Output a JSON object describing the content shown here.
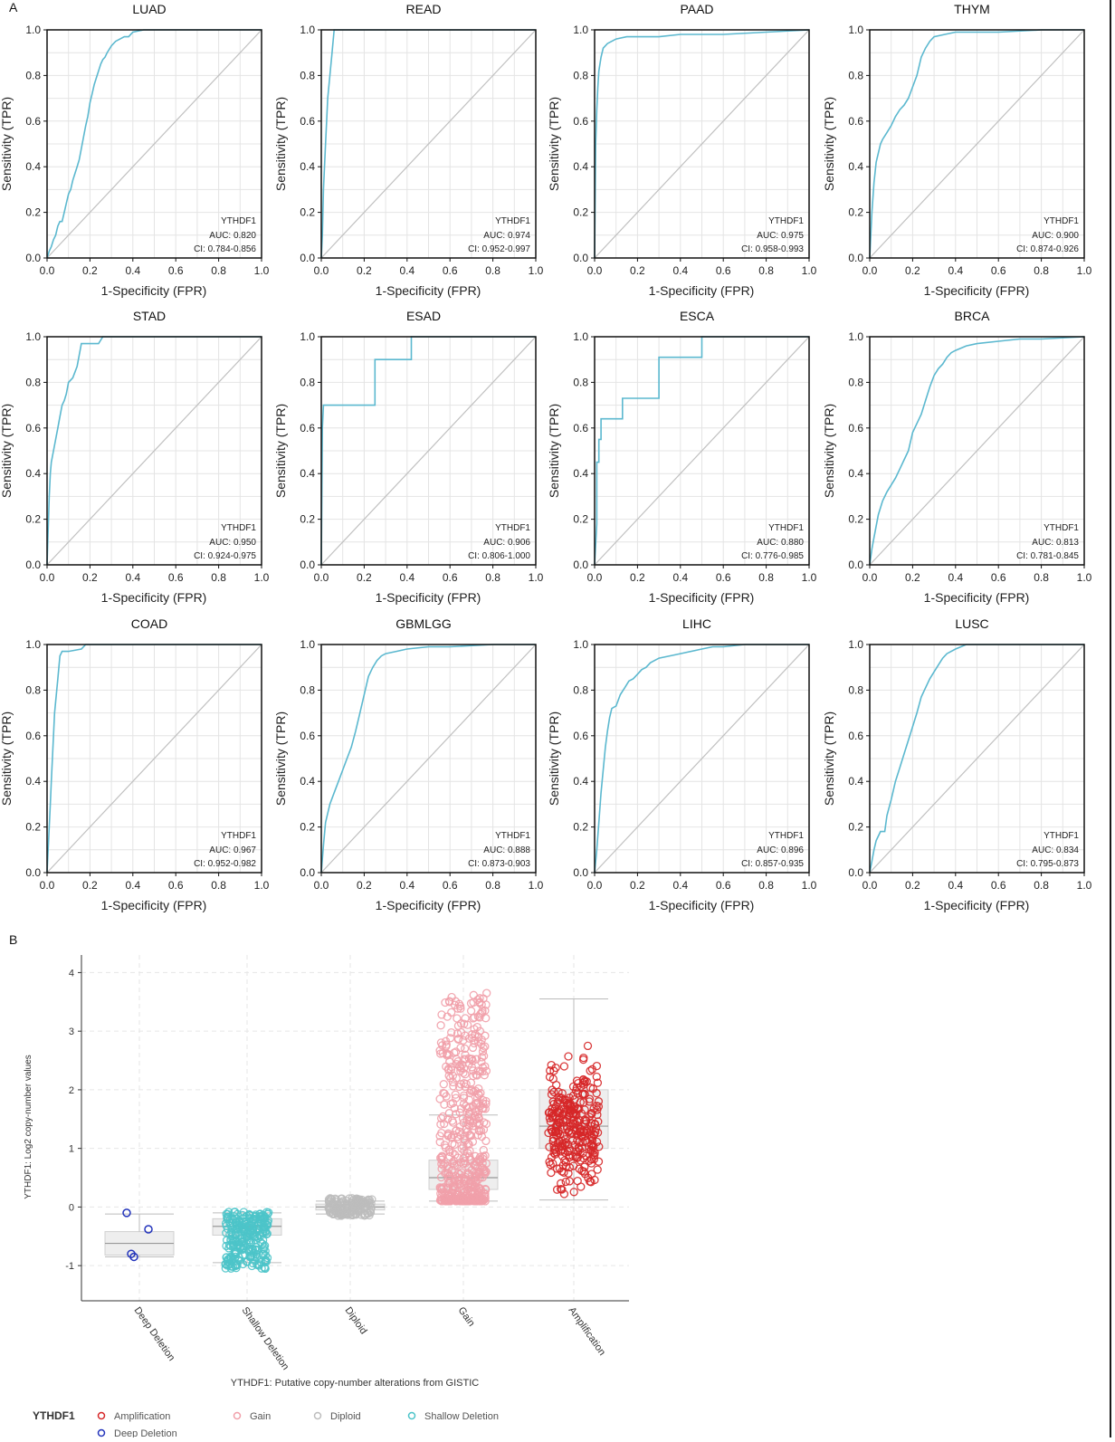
{
  "figure": {
    "panel_a_label": "A",
    "panel_b_label": "B"
  },
  "roc": {
    "xlabel": "1-Specificity (FPR)",
    "ylabel": "Sensitivity (TPR)",
    "ticks": [
      "0.0",
      "0.2",
      "0.4",
      "0.6",
      "0.8",
      "1.0"
    ],
    "gene_label": "YTHDF1",
    "line_color": "#5bb8cf",
    "diag_color": "#c0c0c0"
  },
  "chart_data": [
    {
      "type": "line",
      "title": "LUAD",
      "auc": "AUC: 0.820",
      "ci": "CI: 0.784-0.856",
      "xlim": [
        0,
        1
      ],
      "ylim": [
        0,
        1
      ],
      "series": [
        {
          "x": [
            0,
            0.01,
            0.02,
            0.03,
            0.04,
            0.05,
            0.06,
            0.07,
            0.08,
            0.09,
            0.1,
            0.11,
            0.12,
            0.13,
            0.14,
            0.15,
            0.16,
            0.17,
            0.18,
            0.19,
            0.2,
            0.21,
            0.22,
            0.23,
            0.24,
            0.25,
            0.26,
            0.27,
            0.28,
            0.3,
            0.32,
            0.34,
            0.36,
            0.38,
            0.4,
            0.45,
            1
          ],
          "y": [
            0,
            0.03,
            0.05,
            0.08,
            0.1,
            0.14,
            0.16,
            0.16,
            0.2,
            0.24,
            0.28,
            0.3,
            0.34,
            0.37,
            0.4,
            0.43,
            0.48,
            0.53,
            0.58,
            0.62,
            0.68,
            0.72,
            0.76,
            0.79,
            0.82,
            0.85,
            0.87,
            0.88,
            0.9,
            0.93,
            0.95,
            0.96,
            0.97,
            0.97,
            0.99,
            1.0,
            1.0
          ]
        }
      ]
    },
    {
      "type": "line",
      "title": "READ",
      "auc": "AUC: 0.974",
      "ci": "CI: 0.952-0.997",
      "xlim": [
        0,
        1
      ],
      "ylim": [
        0,
        1
      ],
      "series": [
        {
          "x": [
            0,
            0.005,
            0.01,
            0.02,
            0.03,
            0.04,
            0.05,
            0.06,
            1
          ],
          "y": [
            0,
            0.1,
            0.3,
            0.5,
            0.7,
            0.8,
            0.9,
            1.0,
            1.0
          ]
        }
      ]
    },
    {
      "type": "line",
      "title": "PAAD",
      "auc": "AUC: 0.975",
      "ci": "CI: 0.958-0.993",
      "xlim": [
        0,
        1
      ],
      "ylim": [
        0,
        1
      ],
      "series": [
        {
          "x": [
            0,
            0.005,
            0.01,
            0.015,
            0.02,
            0.03,
            0.04,
            0.06,
            0.08,
            0.1,
            0.15,
            0.2,
            0.3,
            0.4,
            0.6,
            0.8,
            1
          ],
          "y": [
            0,
            0.5,
            0.65,
            0.75,
            0.82,
            0.88,
            0.92,
            0.94,
            0.95,
            0.96,
            0.97,
            0.97,
            0.97,
            0.98,
            0.98,
            0.99,
            1.0
          ]
        }
      ]
    },
    {
      "type": "line",
      "title": "THYM",
      "auc": "AUC: 0.900",
      "ci": "CI: 0.874-0.926",
      "xlim": [
        0,
        1
      ],
      "ylim": [
        0,
        1
      ],
      "series": [
        {
          "x": [
            0,
            0.01,
            0.02,
            0.03,
            0.04,
            0.05,
            0.06,
            0.08,
            0.1,
            0.12,
            0.14,
            0.16,
            0.18,
            0.2,
            0.22,
            0.24,
            0.26,
            0.28,
            0.3,
            0.35,
            0.4,
            0.6,
            0.8,
            1
          ],
          "y": [
            0,
            0.2,
            0.33,
            0.42,
            0.46,
            0.5,
            0.52,
            0.55,
            0.58,
            0.62,
            0.65,
            0.67,
            0.7,
            0.75,
            0.8,
            0.88,
            0.92,
            0.95,
            0.97,
            0.98,
            0.99,
            0.99,
            1.0,
            1.0
          ]
        }
      ]
    },
    {
      "type": "line",
      "title": "STAD",
      "auc": "AUC: 0.950",
      "ci": "CI: 0.924-0.975",
      "xlim": [
        0,
        1
      ],
      "ylim": [
        0,
        1
      ],
      "series": [
        {
          "x": [
            0,
            0.005,
            0.01,
            0.015,
            0.02,
            0.03,
            0.04,
            0.05,
            0.06,
            0.07,
            0.08,
            0.09,
            0.1,
            0.12,
            0.14,
            0.16,
            0.2,
            0.24,
            0.26,
            1
          ],
          "y": [
            0,
            0.15,
            0.3,
            0.4,
            0.45,
            0.5,
            0.55,
            0.6,
            0.65,
            0.7,
            0.72,
            0.75,
            0.8,
            0.82,
            0.87,
            0.97,
            0.97,
            0.97,
            1.0,
            1.0
          ]
        }
      ]
    },
    {
      "type": "line",
      "title": "ESAD",
      "auc": "AUC: 0.906",
      "ci": "CI: 0.806-1.000",
      "xlim": [
        0,
        1
      ],
      "ylim": [
        0,
        1
      ],
      "series": [
        {
          "x": [
            0,
            0.005,
            0.01,
            0.25,
            0.25,
            0.42,
            0.42,
            1
          ],
          "y": [
            0,
            0.6,
            0.7,
            0.7,
            0.9,
            0.9,
            1.0,
            1.0
          ]
        }
      ]
    },
    {
      "type": "line",
      "title": "ESCA",
      "auc": "AUC: 0.880",
      "ci": "CI: 0.776-0.985",
      "xlim": [
        0,
        1
      ],
      "ylim": [
        0,
        1
      ],
      "series": [
        {
          "x": [
            0,
            0.01,
            0.01,
            0.02,
            0.02,
            0.03,
            0.03,
            0.13,
            0.13,
            0.3,
            0.3,
            0.5,
            0.5,
            1
          ],
          "y": [
            0,
            0.18,
            0.45,
            0.45,
            0.55,
            0.55,
            0.64,
            0.64,
            0.73,
            0.73,
            0.91,
            0.91,
            1.0,
            1.0
          ]
        }
      ]
    },
    {
      "type": "line",
      "title": "BRCA",
      "auc": "AUC: 0.813",
      "ci": "CI: 0.781-0.845",
      "xlim": [
        0,
        1
      ],
      "ylim": [
        0,
        1
      ],
      "series": [
        {
          "x": [
            0,
            0.01,
            0.02,
            0.03,
            0.04,
            0.06,
            0.08,
            0.1,
            0.12,
            0.14,
            0.16,
            0.18,
            0.2,
            0.22,
            0.24,
            0.26,
            0.28,
            0.3,
            0.32,
            0.34,
            0.36,
            0.38,
            0.4,
            0.45,
            0.5,
            0.6,
            0.7,
            0.8,
            1
          ],
          "y": [
            0,
            0.07,
            0.12,
            0.17,
            0.22,
            0.28,
            0.32,
            0.35,
            0.38,
            0.42,
            0.46,
            0.5,
            0.58,
            0.62,
            0.66,
            0.72,
            0.78,
            0.83,
            0.86,
            0.88,
            0.91,
            0.93,
            0.94,
            0.96,
            0.97,
            0.98,
            0.99,
            0.99,
            1.0
          ]
        }
      ]
    },
    {
      "type": "line",
      "title": "COAD",
      "auc": "AUC: 0.967",
      "ci": "CI: 0.952-0.982",
      "xlim": [
        0,
        1
      ],
      "ylim": [
        0,
        1
      ],
      "series": [
        {
          "x": [
            0,
            0.005,
            0.01,
            0.015,
            0.02,
            0.025,
            0.03,
            0.035,
            0.04,
            0.05,
            0.06,
            0.07,
            0.08,
            0.1,
            0.16,
            0.18,
            1
          ],
          "y": [
            0,
            0.1,
            0.2,
            0.3,
            0.4,
            0.5,
            0.6,
            0.7,
            0.75,
            0.85,
            0.95,
            0.97,
            0.97,
            0.97,
            0.98,
            1.0,
            1.0
          ]
        }
      ]
    },
    {
      "type": "line",
      "title": "GBMLGG",
      "auc": "AUC: 0.888",
      "ci": "CI: 0.873-0.903",
      "xlim": [
        0,
        1
      ],
      "ylim": [
        0,
        1
      ],
      "series": [
        {
          "x": [
            0,
            0.01,
            0.02,
            0.04,
            0.06,
            0.08,
            0.1,
            0.12,
            0.14,
            0.16,
            0.18,
            0.2,
            0.22,
            0.24,
            0.26,
            0.28,
            0.3,
            0.35,
            0.4,
            0.5,
            0.6,
            0.8,
            1
          ],
          "y": [
            0,
            0.12,
            0.22,
            0.3,
            0.35,
            0.4,
            0.45,
            0.5,
            0.55,
            0.62,
            0.7,
            0.78,
            0.86,
            0.9,
            0.93,
            0.95,
            0.96,
            0.97,
            0.98,
            0.99,
            0.99,
            1.0,
            1.0
          ]
        }
      ]
    },
    {
      "type": "line",
      "title": "LIHC",
      "auc": "AUC: 0.896",
      "ci": "CI: 0.857-0.935",
      "xlim": [
        0,
        1
      ],
      "ylim": [
        0,
        1
      ],
      "series": [
        {
          "x": [
            0,
            0.01,
            0.02,
            0.03,
            0.04,
            0.05,
            0.06,
            0.07,
            0.08,
            0.1,
            0.12,
            0.14,
            0.16,
            0.18,
            0.2,
            0.22,
            0.24,
            0.26,
            0.28,
            0.3,
            0.35,
            0.4,
            0.5,
            0.55,
            0.6,
            0.7,
            0.8,
            1
          ],
          "y": [
            0,
            0.1,
            0.22,
            0.35,
            0.45,
            0.55,
            0.62,
            0.68,
            0.72,
            0.73,
            0.78,
            0.81,
            0.84,
            0.85,
            0.87,
            0.89,
            0.9,
            0.92,
            0.93,
            0.94,
            0.95,
            0.96,
            0.98,
            0.99,
            0.99,
            1.0,
            1.0,
            1.0
          ]
        }
      ]
    },
    {
      "type": "line",
      "title": "LUSC",
      "auc": "AUC: 0.834",
      "ci": "CI: 0.795-0.873",
      "xlim": [
        0,
        1
      ],
      "ylim": [
        0,
        1
      ],
      "series": [
        {
          "x": [
            0,
            0.01,
            0.02,
            0.03,
            0.05,
            0.07,
            0.08,
            0.1,
            0.12,
            0.14,
            0.16,
            0.18,
            0.2,
            0.22,
            0.24,
            0.26,
            0.28,
            0.3,
            0.32,
            0.34,
            0.36,
            0.4,
            0.45,
            0.5,
            1
          ],
          "y": [
            0,
            0.05,
            0.1,
            0.14,
            0.18,
            0.18,
            0.25,
            0.32,
            0.4,
            0.46,
            0.52,
            0.58,
            0.64,
            0.7,
            0.77,
            0.81,
            0.85,
            0.88,
            0.91,
            0.94,
            0.96,
            0.98,
            1.0,
            1.0,
            1.0
          ]
        }
      ]
    },
    {
      "type": "scatter",
      "title": "",
      "xlabel": "YTHDF1: Putative copy-number alterations from GISTIC",
      "ylabel": "YTHDF1: Log2 copy-number values",
      "ylim": [
        -1.6,
        4.3
      ],
      "yticks": [
        "-1",
        "0",
        "1",
        "2",
        "3",
        "4"
      ],
      "categories": [
        "Deep Deletion",
        "Shallow Deletion",
        "Diploid",
        "Gain",
        "Amplification"
      ],
      "boxes": [
        {
          "min": -0.85,
          "q1": -0.82,
          "median": -0.62,
          "q3": -0.42,
          "max": -0.12
        },
        {
          "min": -0.95,
          "q1": -0.48,
          "median": -0.33,
          "q3": -0.2,
          "max": -0.1
        },
        {
          "min": -0.12,
          "q1": -0.05,
          "median": 0.0,
          "q3": 0.05,
          "max": 0.1
        },
        {
          "min": 0.1,
          "q1": 0.3,
          "median": 0.5,
          "q3": 0.8,
          "max": 1.57
        },
        {
          "min": 0.12,
          "q1": 1.0,
          "median": 1.38,
          "q3": 2.0,
          "max": 3.55
        }
      ],
      "points": [
        {
          "category": "Deep Deletion",
          "values": [
            -0.1,
            -0.38,
            -0.8,
            -0.85
          ]
        },
        {
          "category": "Shallow Deletion",
          "range": [
            -1.05,
            -0.08
          ]
        },
        {
          "category": "Diploid",
          "range": [
            -0.15,
            0.15
          ]
        },
        {
          "category": "Gain",
          "range": [
            0.1,
            3.65
          ]
        },
        {
          "category": "Amplification",
          "range": [
            0.1,
            3.65
          ]
        }
      ],
      "legend": {
        "title": "YTHDF1",
        "entries": [
          "Amplification",
          "Gain",
          "Diploid",
          "Shallow Deletion",
          "Deep Deletion"
        ]
      },
      "colors": {
        "Amplification": "#d62728",
        "Gain": "#f1a0aa",
        "Diploid": "#bdbdbd",
        "Shallow Deletion": "#4cc4c9",
        "Deep Deletion": "#2233bb"
      }
    }
  ]
}
